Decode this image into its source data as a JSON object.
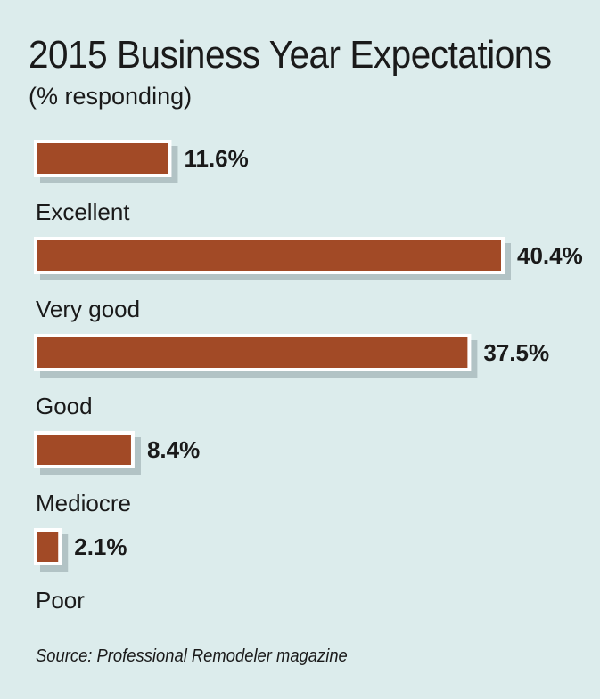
{
  "chart_data": {
    "type": "bar",
    "orientation": "horizontal",
    "title": "2015 Business Year Expectations",
    "subtitle": "(% responding)",
    "categories": [
      "Excellent",
      "Very good",
      "Good",
      "Mediocre",
      "Poor"
    ],
    "values": [
      11.6,
      40.4,
      37.5,
      8.4,
      2.1
    ],
    "value_labels": [
      "11.6%",
      "40.4%",
      "37.5%",
      "8.4%",
      "2.1%"
    ],
    "xlim": [
      0,
      40.4
    ],
    "grid": false,
    "legend": "none",
    "colors": {
      "bar": "#a24a26",
      "bar_outline": "#ffffff",
      "background": "#dcecec"
    }
  },
  "source": "Source: Professional Remodeler magazine"
}
